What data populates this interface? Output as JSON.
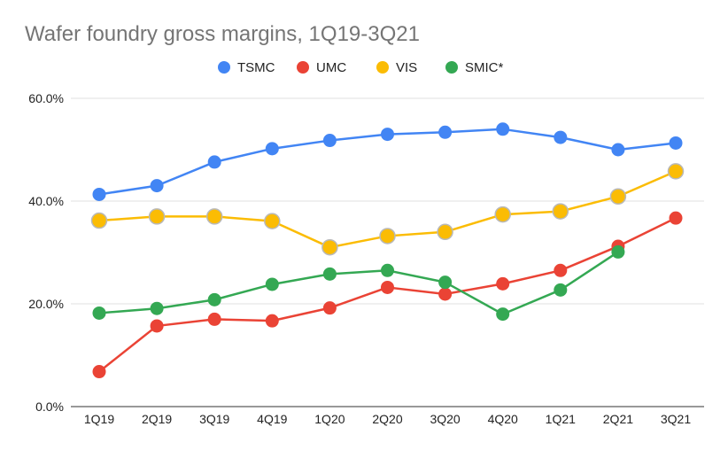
{
  "chart_data": {
    "type": "line",
    "title": "Wafer foundry gross margins, 1Q19-3Q21",
    "xlabel": "",
    "ylabel": "",
    "categories": [
      "1Q19",
      "2Q19",
      "3Q19",
      "4Q19",
      "1Q20",
      "2Q20",
      "3Q20",
      "4Q20",
      "1Q21",
      "2Q21",
      "3Q21"
    ],
    "ylim": [
      0,
      60
    ],
    "yticks": [
      0,
      20,
      40,
      60
    ],
    "ytick_labels": [
      "0.0%",
      "20.0%",
      "40.0%",
      "60.0%"
    ],
    "grid": true,
    "legend": "top",
    "series": [
      {
        "name": "TSMC",
        "color": "#4285f4",
        "values": [
          41.3,
          43.0,
          47.6,
          50.2,
          51.8,
          53.0,
          53.4,
          54.0,
          52.4,
          50.0,
          51.3
        ]
      },
      {
        "name": "UMC",
        "color": "#ea4335",
        "values": [
          6.8,
          15.7,
          17.0,
          16.7,
          19.2,
          23.2,
          21.9,
          23.9,
          26.5,
          31.2,
          36.7
        ]
      },
      {
        "name": "VIS",
        "color": "#fbbc04",
        "values": [
          36.2,
          37.0,
          37.0,
          36.1,
          31.0,
          33.2,
          34.0,
          37.4,
          38.0,
          40.9,
          45.8
        ]
      },
      {
        "name": "SMIC*",
        "color": "#34a853",
        "values": [
          18.2,
          19.1,
          20.8,
          23.8,
          25.8,
          26.5,
          24.2,
          18.0,
          22.7,
          30.1,
          null
        ]
      }
    ]
  }
}
